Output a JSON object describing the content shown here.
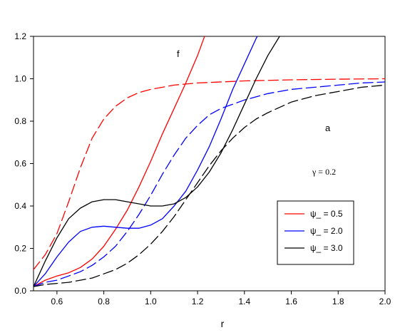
{
  "chart_data": {
    "type": "line",
    "title": "",
    "xlabel": "r",
    "ylabel": "",
    "xlim": [
      0.5,
      2.0
    ],
    "ylim": [
      0.0,
      1.2
    ],
    "x_ticks": [
      0.6,
      0.8,
      1.0,
      1.2,
      1.4,
      1.6,
      1.8,
      2.0
    ],
    "x_tick_labels": [
      "0.6",
      "0.8",
      "1.0",
      "1.2",
      "1.4",
      "1.6",
      "1.8",
      "2.0"
    ],
    "y_ticks": [
      0.0,
      0.2,
      0.4,
      0.6,
      0.8,
      1.0,
      1.2
    ],
    "y_tick_labels": [
      "0.0",
      "0.2",
      "0.4",
      "0.6",
      "0.8",
      "1.0",
      "1.2"
    ],
    "grid": false,
    "legend_position": "lower-right",
    "annotations": {
      "f_label": "f",
      "a_label": "a",
      "gamma_label": "γ  = 0.2"
    },
    "legend": [
      {
        "label": "ψ_ =  0.5",
        "color": "#ff0000"
      },
      {
        "label": "ψ_ = 2.0",
        "color": "#0000ff"
      },
      {
        "label": "ψ_ = 3.0",
        "color": "#000000"
      }
    ],
    "series": [
      {
        "group": "ψ_ =  0.5",
        "curve": "f",
        "color": "#ff0000",
        "dash": "solid",
        "points": [
          [
            0.5,
            0.02
          ],
          [
            0.55,
            0.05
          ],
          [
            0.6,
            0.07
          ],
          [
            0.65,
            0.085
          ],
          [
            0.7,
            0.11
          ],
          [
            0.75,
            0.15
          ],
          [
            0.8,
            0.21
          ],
          [
            0.85,
            0.29
          ],
          [
            0.9,
            0.38
          ],
          [
            0.95,
            0.49
          ],
          [
            1.0,
            0.61
          ],
          [
            1.05,
            0.74
          ],
          [
            1.1,
            0.86
          ],
          [
            1.15,
            0.98
          ],
          [
            1.2,
            1.11
          ],
          [
            1.23,
            1.2
          ]
        ]
      },
      {
        "group": "ψ_ =  0.5",
        "curve": "a",
        "color": "#ff0000",
        "dash": "dashed",
        "points": [
          [
            0.5,
            0.1
          ],
          [
            0.55,
            0.17
          ],
          [
            0.6,
            0.27
          ],
          [
            0.65,
            0.42
          ],
          [
            0.7,
            0.58
          ],
          [
            0.75,
            0.72
          ],
          [
            0.8,
            0.81
          ],
          [
            0.85,
            0.87
          ],
          [
            0.9,
            0.91
          ],
          [
            0.95,
            0.935
          ],
          [
            1.0,
            0.95
          ],
          [
            1.1,
            0.97
          ],
          [
            1.2,
            0.98
          ],
          [
            1.4,
            0.99
          ],
          [
            1.6,
            0.995
          ],
          [
            1.8,
            0.998
          ],
          [
            2.0,
            1.0
          ]
        ]
      },
      {
        "group": "ψ_ = 2.0",
        "curve": "f",
        "color": "#0000ff",
        "dash": "solid",
        "points": [
          [
            0.5,
            0.02
          ],
          [
            0.55,
            0.08
          ],
          [
            0.6,
            0.16
          ],
          [
            0.65,
            0.23
          ],
          [
            0.7,
            0.28
          ],
          [
            0.75,
            0.3
          ],
          [
            0.8,
            0.305
          ],
          [
            0.85,
            0.3
          ],
          [
            0.9,
            0.295
          ],
          [
            0.95,
            0.295
          ],
          [
            1.0,
            0.31
          ],
          [
            1.05,
            0.34
          ],
          [
            1.1,
            0.4
          ],
          [
            1.15,
            0.47
          ],
          [
            1.2,
            0.57
          ],
          [
            1.25,
            0.68
          ],
          [
            1.3,
            0.81
          ],
          [
            1.35,
            0.95
          ],
          [
            1.4,
            1.07
          ],
          [
            1.45,
            1.19
          ],
          [
            1.455,
            1.2
          ]
        ]
      },
      {
        "group": "ψ_ = 2.0",
        "curve": "a",
        "color": "#0000ff",
        "dash": "dashed",
        "points": [
          [
            0.5,
            0.02
          ],
          [
            0.55,
            0.04
          ],
          [
            0.6,
            0.05
          ],
          [
            0.65,
            0.07
          ],
          [
            0.7,
            0.09
          ],
          [
            0.75,
            0.12
          ],
          [
            0.8,
            0.16
          ],
          [
            0.85,
            0.21
          ],
          [
            0.9,
            0.28
          ],
          [
            0.95,
            0.36
          ],
          [
            1.0,
            0.45
          ],
          [
            1.05,
            0.55
          ],
          [
            1.1,
            0.64
          ],
          [
            1.15,
            0.72
          ],
          [
            1.2,
            0.78
          ],
          [
            1.25,
            0.83
          ],
          [
            1.3,
            0.86
          ],
          [
            1.35,
            0.88
          ],
          [
            1.4,
            0.9
          ],
          [
            1.5,
            0.93
          ],
          [
            1.6,
            0.95
          ],
          [
            1.7,
            0.96
          ],
          [
            1.8,
            0.97
          ],
          [
            1.9,
            0.98
          ],
          [
            2.0,
            0.985
          ]
        ]
      },
      {
        "group": "ψ_ = 3.0",
        "curve": "f",
        "color": "#000000",
        "dash": "solid",
        "points": [
          [
            0.5,
            0.02
          ],
          [
            0.55,
            0.14
          ],
          [
            0.6,
            0.25
          ],
          [
            0.65,
            0.34
          ],
          [
            0.7,
            0.39
          ],
          [
            0.75,
            0.42
          ],
          [
            0.8,
            0.43
          ],
          [
            0.85,
            0.43
          ],
          [
            0.9,
            0.42
          ],
          [
            0.95,
            0.41
          ],
          [
            1.0,
            0.4
          ],
          [
            1.05,
            0.4
          ],
          [
            1.1,
            0.41
          ],
          [
            1.15,
            0.44
          ],
          [
            1.2,
            0.49
          ],
          [
            1.25,
            0.56
          ],
          [
            1.3,
            0.65
          ],
          [
            1.35,
            0.76
          ],
          [
            1.4,
            0.88
          ],
          [
            1.45,
            1.0
          ],
          [
            1.5,
            1.11
          ],
          [
            1.55,
            1.2
          ]
        ]
      },
      {
        "group": "ψ_ = 3.0",
        "curve": "a",
        "color": "#000000",
        "dash": "dashed",
        "points": [
          [
            0.5,
            0.02
          ],
          [
            0.55,
            0.03
          ],
          [
            0.6,
            0.035
          ],
          [
            0.65,
            0.04
          ],
          [
            0.7,
            0.05
          ],
          [
            0.75,
            0.06
          ],
          [
            0.8,
            0.08
          ],
          [
            0.85,
            0.1
          ],
          [
            0.9,
            0.13
          ],
          [
            0.95,
            0.17
          ],
          [
            1.0,
            0.22
          ],
          [
            1.05,
            0.28
          ],
          [
            1.1,
            0.35
          ],
          [
            1.15,
            0.43
          ],
          [
            1.2,
            0.51
          ],
          [
            1.25,
            0.59
          ],
          [
            1.3,
            0.66
          ],
          [
            1.35,
            0.72
          ],
          [
            1.4,
            0.77
          ],
          [
            1.45,
            0.81
          ],
          [
            1.5,
            0.84
          ],
          [
            1.6,
            0.89
          ],
          [
            1.7,
            0.92
          ],
          [
            1.8,
            0.94
          ],
          [
            1.9,
            0.96
          ],
          [
            2.0,
            0.97
          ]
        ]
      }
    ]
  }
}
